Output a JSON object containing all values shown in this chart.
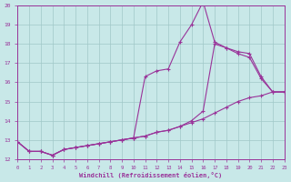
{
  "xlabel": "Windchill (Refroidissement éolien,°C)",
  "bg_color": "#c8e8e8",
  "grid_color": "#a0c8c8",
  "line_color": "#993399",
  "xlim": [
    0,
    23
  ],
  "ylim": [
    12,
    20
  ],
  "xticks": [
    0,
    1,
    2,
    3,
    4,
    5,
    6,
    7,
    8,
    9,
    10,
    11,
    12,
    13,
    14,
    15,
    16,
    17,
    18,
    19,
    20,
    21,
    22,
    23
  ],
  "yticks": [
    12,
    13,
    14,
    15,
    16,
    17,
    18,
    19,
    20
  ],
  "series": [
    {
      "x": [
        0,
        1,
        2,
        3,
        4,
        5,
        6,
        7,
        8,
        9,
        10,
        11,
        12,
        13,
        14,
        15,
        16,
        17,
        18,
        19,
        20,
        21,
        22,
        23
      ],
      "y": [
        12.9,
        12.4,
        12.4,
        12.2,
        12.5,
        12.6,
        12.7,
        12.8,
        12.9,
        13.0,
        13.1,
        13.2,
        13.4,
        13.5,
        13.7,
        13.9,
        14.1,
        14.4,
        14.7,
        15.0,
        15.2,
        15.3,
        15.5,
        15.5
      ]
    },
    {
      "x": [
        0,
        1,
        2,
        3,
        4,
        5,
        6,
        7,
        8,
        9,
        10,
        11,
        12,
        13,
        14,
        15,
        16,
        17,
        18,
        19,
        20,
        21,
        22,
        23
      ],
      "y": [
        12.9,
        12.4,
        12.4,
        12.2,
        12.5,
        12.6,
        12.7,
        12.8,
        12.9,
        13.0,
        13.1,
        16.3,
        16.6,
        16.7,
        18.1,
        19.0,
        20.2,
        18.1,
        17.8,
        17.6,
        17.5,
        16.3,
        15.5,
        15.5
      ]
    },
    {
      "x": [
        0,
        1,
        2,
        3,
        4,
        5,
        6,
        7,
        8,
        9,
        10,
        11,
        12,
        13,
        14,
        15,
        16,
        17,
        18,
        19,
        20,
        21,
        22,
        23
      ],
      "y": [
        12.9,
        12.4,
        12.4,
        12.2,
        12.5,
        12.6,
        12.7,
        12.8,
        12.9,
        13.0,
        13.1,
        13.2,
        13.4,
        13.5,
        13.7,
        14.0,
        14.5,
        18.0,
        17.8,
        17.5,
        17.3,
        16.2,
        15.5,
        15.5
      ]
    }
  ]
}
